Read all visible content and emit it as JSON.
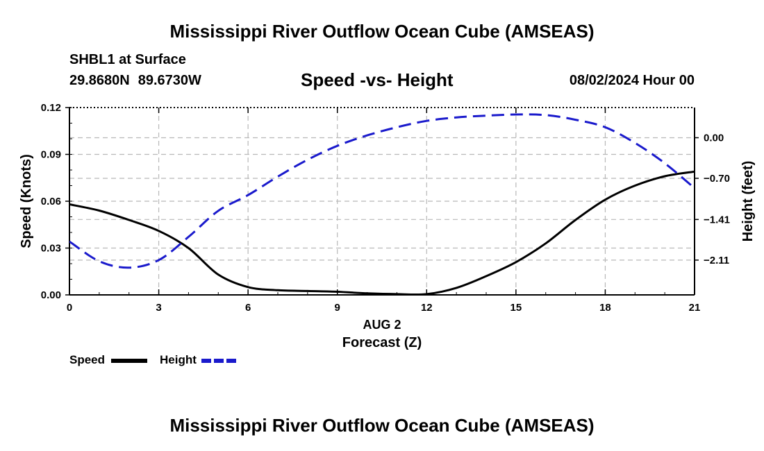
{
  "header": {
    "title": "Mississippi River Outflow Ocean Cube (AMSEAS)",
    "station": "SHBL1 at Surface",
    "latitude": "29.8680N",
    "longitude": "89.6730W",
    "subtitle": "Speed -vs- Height",
    "datetime": "08/02/2024 Hour 00"
  },
  "legend": {
    "speed_label": "Speed",
    "height_label": "Height"
  },
  "footer": {
    "title": "Mississippi River Outflow Ocean Cube (AMSEAS)"
  },
  "colors": {
    "speed": "#000000",
    "height": "#1a1acc",
    "grid": "#b8b8b8"
  },
  "chart_data": {
    "type": "line",
    "title": "Speed -vs- Height",
    "xlabel": "Forecast (Z)",
    "xlabel_date": "AUG 2",
    "ylabel": "Speed (Knots)",
    "y2label": "Height (feet)",
    "xlim": [
      0,
      21
    ],
    "ylim": [
      0,
      0.12
    ],
    "y2lim": [
      -2.71,
      0.52
    ],
    "x_ticks": [
      0,
      3,
      6,
      9,
      12,
      15,
      18,
      21
    ],
    "y_ticks": [
      0,
      0.03,
      0.06,
      0.09,
      0.12
    ],
    "y_tick_labels": [
      "0.00",
      "0.03",
      "0.06",
      "0.09",
      "0.12"
    ],
    "y2_ticks": [
      0.0,
      -0.7,
      -1.41,
      -2.11
    ],
    "y2_tick_labels": [
      "0.00",
      "−0.70",
      "−1.41",
      "−2.11"
    ],
    "grid": true,
    "series": [
      {
        "name": "Speed",
        "axis": "left",
        "style": "solid",
        "x": [
          0,
          1,
          2,
          3,
          4,
          5,
          6,
          7,
          8,
          9,
          10,
          11,
          12,
          13,
          14,
          15,
          16,
          17,
          18,
          19,
          20,
          21
        ],
        "values": [
          0.058,
          0.054,
          0.048,
          0.041,
          0.03,
          0.013,
          0.005,
          0.003,
          0.0025,
          0.002,
          0.001,
          0.0005,
          0.0005,
          0.0045,
          0.012,
          0.021,
          0.033,
          0.048,
          0.061,
          0.07,
          0.076,
          0.079
        ]
      },
      {
        "name": "Height",
        "axis": "right",
        "style": "dashed",
        "x": [
          0,
          1,
          2,
          3,
          4,
          5,
          6,
          7,
          8,
          9,
          10,
          11,
          12,
          13,
          14,
          15,
          16,
          17,
          18,
          19,
          20,
          21
        ],
        "values": [
          -1.79,
          -2.13,
          -2.24,
          -2.11,
          -1.71,
          -1.26,
          -0.99,
          -0.67,
          -0.38,
          -0.14,
          0.04,
          0.18,
          0.29,
          0.35,
          0.38,
          0.4,
          0.39,
          0.31,
          0.18,
          -0.09,
          -0.44,
          -0.87
        ]
      }
    ]
  }
}
